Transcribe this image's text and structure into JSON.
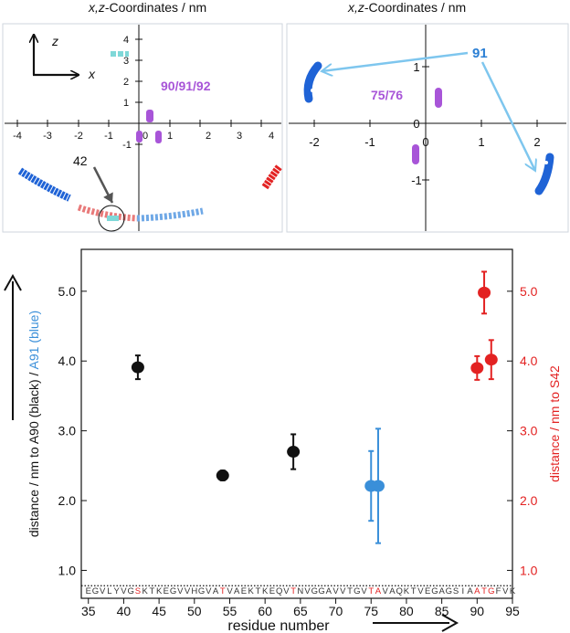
{
  "panels": {
    "left": {
      "title_italic": "x,z",
      "title_rest": "-Coordinates / nm",
      "x_ticks": [
        -4,
        -3,
        -2,
        -1,
        0,
        1,
        2,
        3,
        4
      ],
      "y_ticks": [
        -1,
        1,
        2,
        3,
        4
      ],
      "axis_labels": {
        "z": "z",
        "x": "x"
      },
      "annot_residues": "90/91/92",
      "annot_42": "42"
    },
    "right": {
      "title_italic": "x,z",
      "title_rest": "-Coordinates / nm",
      "x_ticks": [
        -2,
        -1,
        0,
        1,
        2
      ],
      "y_ticks": [
        -1,
        0,
        1
      ],
      "annot_91": "91",
      "annot_7576": "75/76"
    }
  },
  "chart_data": {
    "type": "scatter",
    "xlabel": "residue number",
    "ylabel_left_parts": [
      "distance / nm to A90 (black) / ",
      "A91 (blue)"
    ],
    "ylabel_right": "distance / nm to S42",
    "xlim": [
      34,
      95
    ],
    "ylim": [
      0.6,
      5.6
    ],
    "x_ticks": [
      35,
      40,
      45,
      50,
      55,
      60,
      65,
      70,
      75,
      80,
      85,
      90,
      95
    ],
    "y_ticks_left": [
      "1.0",
      "2.0",
      "3.0",
      "4.0",
      "5.0"
    ],
    "y_ticks_right": [
      "1.0",
      "2.0",
      "3.0",
      "4.0",
      "5.0"
    ],
    "dotted_line_y": 0.78,
    "sequence": "EGVLYVGSKTKEGVVHGVATVAEKTKEQVTNVGGAVVTGVTAVAQKTVEGAGSIAATGFVK",
    "sequence_start": 35,
    "highlight_residues": [
      42,
      54,
      64,
      75,
      76,
      90,
      91,
      92
    ],
    "colors": {
      "black": "#111111",
      "blue": "#3a8fd9",
      "red": "#e32222",
      "cyan": "#7fd8d8",
      "purple": "#a855d8",
      "darkblue": "#1f63d6"
    },
    "series": [
      {
        "name": "to A90",
        "color": "black",
        "points": [
          {
            "x": 42,
            "y": 3.91,
            "err": 0.17
          },
          {
            "x": 54,
            "y": 2.36,
            "err": 0.07
          },
          {
            "x": 64,
            "y": 2.7,
            "err": 0.25
          }
        ]
      },
      {
        "name": "to A91",
        "color": "blue",
        "points": [
          {
            "x": 75,
            "y": 2.21,
            "err": 0.5
          },
          {
            "x": 76,
            "y": 2.21,
            "err": 0.82
          }
        ]
      },
      {
        "name": "to S42",
        "color": "red",
        "points": [
          {
            "x": 90,
            "y": 3.9,
            "err": 0.17
          },
          {
            "x": 91,
            "y": 4.98,
            "err": 0.3
          },
          {
            "x": 92,
            "y": 4.02,
            "err": 0.28
          }
        ]
      }
    ]
  }
}
